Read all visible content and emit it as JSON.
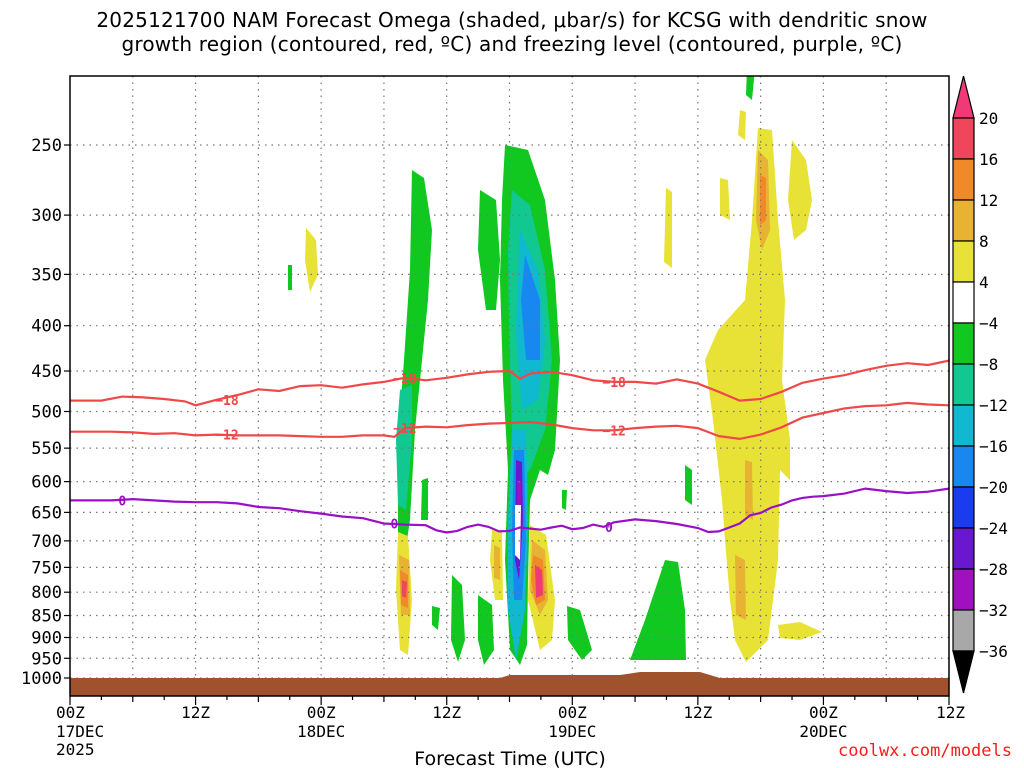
{
  "chart_data": {
    "type": "heatmap",
    "title_line1": "2025121700 NAM Forecast Omega (shaded, μbar/s) for KCSG with dendritic snow",
    "title_line2": "growth region (contoured, red, ºC) and freezing level (contoured, purple, ºC)",
    "xlabel": "Forecast Time (UTC)",
    "ylabel": "",
    "credit": "coolwx.com/models",
    "x_hours_range": [
      0,
      84
    ],
    "y_pressure_range_mb": [
      200,
      1050
    ],
    "x_ticks": [
      {
        "h": 0,
        "label": "00Z",
        "sub": "17DEC",
        "sub2": "2025"
      },
      {
        "h": 12,
        "label": "12Z"
      },
      {
        "h": 24,
        "label": "00Z",
        "sub": "18DEC"
      },
      {
        "h": 36,
        "label": "12Z"
      },
      {
        "h": 48,
        "label": "00Z",
        "sub": "19DEC"
      },
      {
        "h": 60,
        "label": "12Z"
      },
      {
        "h": 72,
        "label": "00Z",
        "sub": "20DEC"
      },
      {
        "h": 84,
        "label": "12Z"
      }
    ],
    "y_ticks": [
      "250",
      "300",
      "350",
      "400",
      "450",
      "500",
      "550",
      "600",
      "650",
      "700",
      "750",
      "800",
      "850",
      "900",
      "950",
      "1000"
    ],
    "y_tick_values": [
      250,
      300,
      350,
      400,
      450,
      500,
      550,
      600,
      650,
      700,
      750,
      800,
      850,
      900,
      950,
      1000
    ],
    "colorbar": {
      "labels": [
        "20",
        "16",
        "12",
        "8",
        "4",
        "−4",
        "−8",
        "−12",
        "−16",
        "−20",
        "−24",
        "−28",
        "−32",
        "−36"
      ],
      "colors": [
        "#f03a78",
        "#f0455a",
        "#f08a28",
        "#e8b232",
        "#e8e236",
        "#ffffff",
        "#10c820",
        "#10c890",
        "#10b8d0",
        "#1888f0",
        "#1a3cf0",
        "#6a18d0",
        "#a010c0",
        "#a8a8a8",
        "#000000"
      ]
    },
    "contours": [
      {
        "name": "-18C isotherm",
        "color": "#f04848",
        "label": "−18",
        "points": [
          [
            0,
            486
          ],
          [
            3,
            486
          ],
          [
            5,
            481
          ],
          [
            7,
            482
          ],
          [
            9,
            484
          ],
          [
            11,
            487
          ],
          [
            12,
            492
          ],
          [
            14,
            485
          ],
          [
            16,
            479
          ],
          [
            18,
            472
          ],
          [
            20,
            474
          ],
          [
            22,
            468
          ],
          [
            24,
            467
          ],
          [
            26,
            470
          ],
          [
            28,
            466
          ],
          [
            30,
            463
          ],
          [
            32,
            458
          ],
          [
            34,
            461
          ],
          [
            36,
            458
          ],
          [
            38,
            454
          ],
          [
            40,
            451
          ],
          [
            42,
            450
          ],
          [
            43,
            459
          ],
          [
            44,
            453
          ],
          [
            46,
            451
          ],
          [
            48,
            455
          ],
          [
            50,
            461
          ],
          [
            52,
            463
          ],
          [
            54,
            463
          ],
          [
            56,
            465
          ],
          [
            58,
            460
          ],
          [
            60,
            465
          ],
          [
            62,
            475
          ],
          [
            64,
            486
          ],
          [
            66,
            484
          ],
          [
            68,
            475
          ],
          [
            70,
            464
          ],
          [
            72,
            459
          ],
          [
            74,
            455
          ],
          [
            76,
            449
          ],
          [
            78,
            444
          ],
          [
            80,
            441
          ],
          [
            82,
            443
          ],
          [
            84,
            438
          ]
        ]
      },
      {
        "name": "-12C isotherm",
        "color": "#f04848",
        "label": "−12",
        "points": [
          [
            0,
            527
          ],
          [
            4,
            527
          ],
          [
            6,
            528
          ],
          [
            8,
            530
          ],
          [
            10,
            529
          ],
          [
            12,
            532
          ],
          [
            14,
            531
          ],
          [
            16,
            532
          ],
          [
            18,
            532
          ],
          [
            20,
            532
          ],
          [
            22,
            533
          ],
          [
            24,
            534
          ],
          [
            26,
            534
          ],
          [
            28,
            532
          ],
          [
            30,
            532
          ],
          [
            31,
            534
          ],
          [
            32,
            522
          ],
          [
            34,
            520
          ],
          [
            36,
            521
          ],
          [
            38,
            518
          ],
          [
            40,
            516
          ],
          [
            42,
            515
          ],
          [
            44,
            514
          ],
          [
            46,
            517
          ],
          [
            48,
            522
          ],
          [
            50,
            525
          ],
          [
            52,
            525
          ],
          [
            54,
            522
          ],
          [
            56,
            520
          ],
          [
            58,
            519
          ],
          [
            60,
            522
          ],
          [
            62,
            533
          ],
          [
            64,
            537
          ],
          [
            66,
            531
          ],
          [
            68,
            521
          ],
          [
            70,
            508
          ],
          [
            72,
            502
          ],
          [
            74,
            496
          ],
          [
            76,
            493
          ],
          [
            78,
            492
          ],
          [
            80,
            489
          ],
          [
            82,
            491
          ],
          [
            84,
            492
          ]
        ]
      },
      {
        "name": "0C freezing level",
        "color": "#9a10c8",
        "label": "0",
        "label_color": "#9a10c8",
        "points": [
          [
            0,
            630
          ],
          [
            4,
            630
          ],
          [
            6,
            628
          ],
          [
            8,
            630
          ],
          [
            10,
            632
          ],
          [
            12,
            633
          ],
          [
            14,
            633
          ],
          [
            16,
            635
          ],
          [
            18,
            641
          ],
          [
            20,
            643
          ],
          [
            22,
            648
          ],
          [
            24,
            652
          ],
          [
            26,
            657
          ],
          [
            28,
            660
          ],
          [
            30,
            669
          ],
          [
            32,
            671
          ],
          [
            34,
            672
          ],
          [
            35,
            681
          ],
          [
            36,
            685
          ],
          [
            37,
            682
          ],
          [
            38,
            675
          ],
          [
            39,
            671
          ],
          [
            40,
            675
          ],
          [
            41,
            683
          ],
          [
            42,
            682
          ],
          [
            43,
            676
          ],
          [
            44,
            678
          ],
          [
            45,
            680
          ],
          [
            46,
            676
          ],
          [
            47,
            673
          ],
          [
            48,
            679
          ],
          [
            49,
            677
          ],
          [
            50,
            671
          ],
          [
            51,
            675
          ],
          [
            52,
            667
          ],
          [
            54,
            662
          ],
          [
            56,
            665
          ],
          [
            58,
            670
          ],
          [
            60,
            677
          ],
          [
            61,
            684
          ],
          [
            62,
            683
          ],
          [
            63,
            676
          ],
          [
            64,
            669
          ],
          [
            65,
            655
          ],
          [
            66,
            651
          ],
          [
            67,
            642
          ],
          [
            68,
            637
          ],
          [
            69,
            630
          ],
          [
            70,
            626
          ],
          [
            71,
            624
          ],
          [
            72,
            623
          ],
          [
            74,
            619
          ],
          [
            76,
            611
          ],
          [
            78,
            615
          ],
          [
            80,
            618
          ],
          [
            82,
            616
          ],
          [
            84,
            611
          ]
        ]
      }
    ]
  }
}
